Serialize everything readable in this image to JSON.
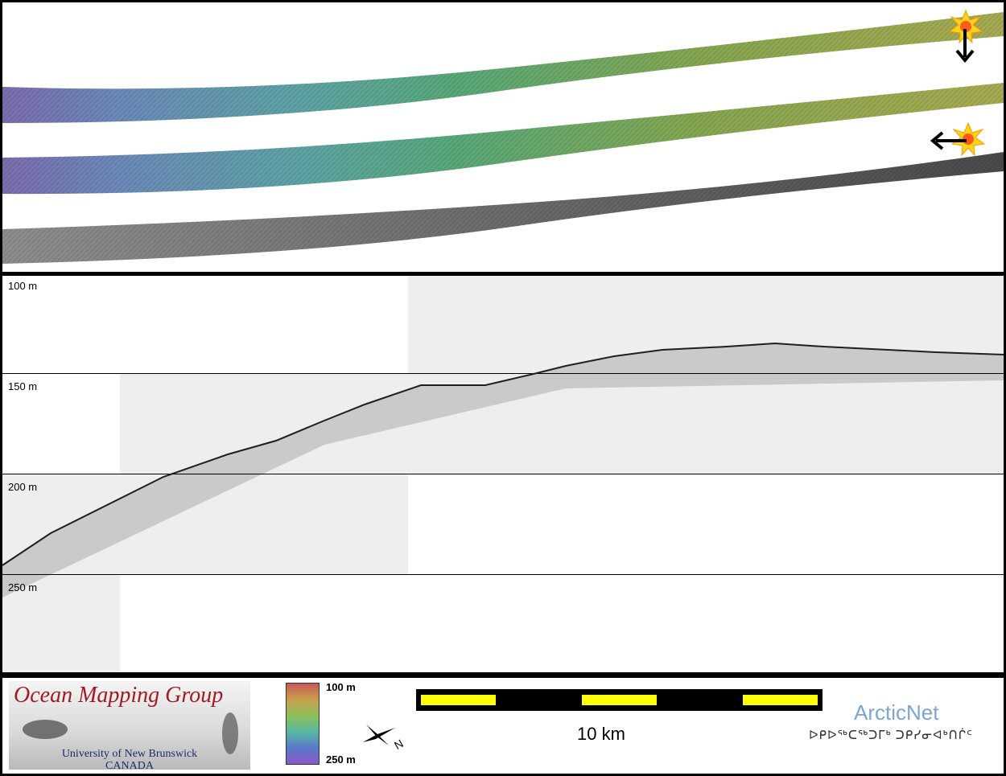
{
  "profile": {
    "depth_labels": [
      "100 m",
      "150 m",
      "200 m",
      "250 m"
    ]
  },
  "legend": {
    "logo_title": "Ocean Mapping Group",
    "logo_subtitle_1": "University of New Brunswick",
    "logo_subtitle_2": "CANADA",
    "colorbar_top": "100 m",
    "colorbar_bottom": "250 m",
    "scale_label": "10 km",
    "north_label": "N",
    "partner_name": "ArcticNet",
    "partner_syllabics": "ᐅᑭᐅᖅᑕᖅᑐᒥᒃ ᑐᑭᓯᓂᐊᒃᑎᒌᑦ"
  },
  "colors": {
    "accent_red": "#a21b24",
    "scale_yellow": "#ffff00",
    "arcticnet_blue": "#7aa7cf"
  },
  "icons": [
    "sun-icon",
    "arrow-down-icon",
    "arrow-left-icon",
    "north-arrow-icon"
  ]
}
